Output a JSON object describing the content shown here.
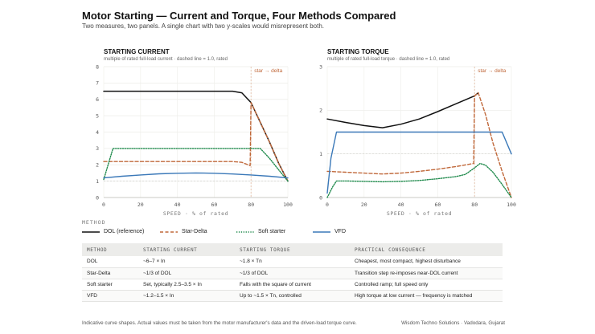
{
  "header": {
    "title": "Motor Starting — Current and Torque, Four Methods Compared",
    "subtitle": "Two measures, two panels. A single chart with two y-scales would misrepresent both."
  },
  "legend": {
    "heading": "METHOD",
    "items": [
      {
        "label": "DOL (reference)",
        "color": "#111111",
        "dash": "solid"
      },
      {
        "label": "Star-Delta",
        "color": "#c0683a",
        "dash": "dashed"
      },
      {
        "label": "Soft starter",
        "color": "#1f8a4c",
        "dash": "dotted"
      },
      {
        "label": "VFD",
        "color": "#3a78b8",
        "dash": "solid"
      }
    ]
  },
  "table": {
    "headers": [
      "METHOD",
      "STARTING CURRENT",
      "STARTING TORQUE",
      "PRACTICAL CONSEQUENCE"
    ],
    "rows": [
      [
        "DOL",
        "~6–7 × In",
        "~1.8 × Tn",
        "Cheapest, most compact, highest disturbance"
      ],
      [
        "Star-Delta",
        "~1/3 of DOL",
        "~1/3 of DOL",
        "Transition step re-imposes near-DOL current"
      ],
      [
        "Soft starter",
        "Set, typically 2.5–3.5 × In",
        "Falls with the square of current",
        "Controlled ramp; full speed only"
      ],
      [
        "VFD",
        "~1.2–1.5 × In",
        "Up to ~1.5 × Tn, controlled",
        "High torque at low current — frequency is matched"
      ]
    ]
  },
  "footer": {
    "left": "Indicative curve shapes. Actual values must be taken from the motor manufacturer's data and the driven-load torque curve.",
    "right": "Wisdom Techno Solutions · Vadodara, Gujarat"
  },
  "chart_data": [
    {
      "type": "line",
      "title": "STARTING CURRENT",
      "subtitle": "multiple of rated full-load current · dashed line = 1.0, rated",
      "xlabel": "SPEED · % of rated",
      "ylabel": "",
      "xlim": [
        0,
        100
      ],
      "ylim": [
        0,
        8
      ],
      "xticks": [
        0,
        20,
        40,
        60,
        80,
        100
      ],
      "yticks": [
        0,
        1,
        2,
        3,
        4,
        5,
        6,
        7,
        8
      ],
      "reference_y": 1.0,
      "annotation": {
        "text": "star → delta",
        "x": 80
      },
      "grid": true,
      "series": [
        {
          "name": "DOL (reference)",
          "x": [
            0,
            10,
            20,
            30,
            40,
            50,
            60,
            70,
            75,
            80,
            85,
            90,
            95,
            100
          ],
          "y": [
            6.5,
            6.5,
            6.5,
            6.5,
            6.5,
            6.5,
            6.5,
            6.5,
            6.4,
            5.8,
            4.6,
            3.4,
            2.1,
            1.0
          ]
        },
        {
          "name": "Star-Delta",
          "x": [
            0,
            10,
            20,
            30,
            40,
            50,
            60,
            70,
            75,
            79.5,
            80,
            85,
            90,
            95,
            100
          ],
          "y": [
            2.2,
            2.2,
            2.2,
            2.2,
            2.2,
            2.2,
            2.2,
            2.2,
            2.15,
            1.95,
            5.8,
            4.6,
            3.4,
            2.1,
            1.0
          ]
        },
        {
          "name": "Soft starter",
          "x": [
            0,
            5,
            10,
            20,
            30,
            40,
            50,
            60,
            70,
            80,
            85,
            90,
            95,
            100
          ],
          "y": [
            1.1,
            3.0,
            3.0,
            3.0,
            3.0,
            3.0,
            3.0,
            3.0,
            3.0,
            3.0,
            3.0,
            2.4,
            1.7,
            1.0
          ]
        },
        {
          "name": "VFD",
          "x": [
            0,
            10,
            20,
            30,
            40,
            50,
            60,
            70,
            80,
            90,
            100
          ],
          "y": [
            1.2,
            1.3,
            1.38,
            1.45,
            1.48,
            1.5,
            1.48,
            1.44,
            1.38,
            1.3,
            1.2
          ]
        }
      ]
    },
    {
      "type": "line",
      "title": "STARTING TORQUE",
      "subtitle": "multiple of rated full-load torque · dashed line = 1.0, rated",
      "xlabel": "SPEED · % of rated",
      "ylabel": "",
      "xlim": [
        0,
        100
      ],
      "ylim": [
        0,
        3
      ],
      "xticks": [
        0,
        20,
        40,
        60,
        80,
        100
      ],
      "yticks": [
        0,
        1,
        2,
        3
      ],
      "reference_y": 1.0,
      "annotation": {
        "text": "star → delta",
        "x": 80
      },
      "grid": true,
      "series": [
        {
          "name": "DOL (reference)",
          "x": [
            0,
            10,
            20,
            30,
            40,
            50,
            60,
            70,
            80,
            82
          ],
          "y": [
            1.8,
            1.72,
            1.65,
            1.6,
            1.68,
            1.8,
            1.97,
            2.15,
            2.33,
            2.4
          ]
        },
        {
          "name": "Star-Delta",
          "x": [
            0,
            10,
            20,
            30,
            40,
            50,
            60,
            70,
            79.5,
            80,
            82,
            86,
            90,
            95,
            100
          ],
          "y": [
            0.6,
            0.58,
            0.56,
            0.54,
            0.56,
            0.6,
            0.65,
            0.71,
            0.78,
            2.33,
            2.4,
            1.9,
            1.25,
            0.6,
            0.0
          ]
        },
        {
          "name": "Soft starter",
          "x": [
            0,
            3,
            5,
            10,
            20,
            30,
            40,
            50,
            60,
            70,
            75,
            80,
            83,
            86,
            90,
            95,
            100
          ],
          "y": [
            0.0,
            0.25,
            0.38,
            0.38,
            0.37,
            0.36,
            0.37,
            0.39,
            0.43,
            0.48,
            0.53,
            0.68,
            0.78,
            0.74,
            0.58,
            0.3,
            0.0
          ]
        },
        {
          "name": "VFD",
          "x": [
            0,
            2,
            5,
            10,
            20,
            30,
            40,
            50,
            60,
            70,
            80,
            90,
            95,
            100
          ],
          "y": [
            0.1,
            0.9,
            1.5,
            1.5,
            1.5,
            1.5,
            1.5,
            1.5,
            1.5,
            1.5,
            1.5,
            1.5,
            1.5,
            1.0
          ]
        }
      ]
    }
  ]
}
